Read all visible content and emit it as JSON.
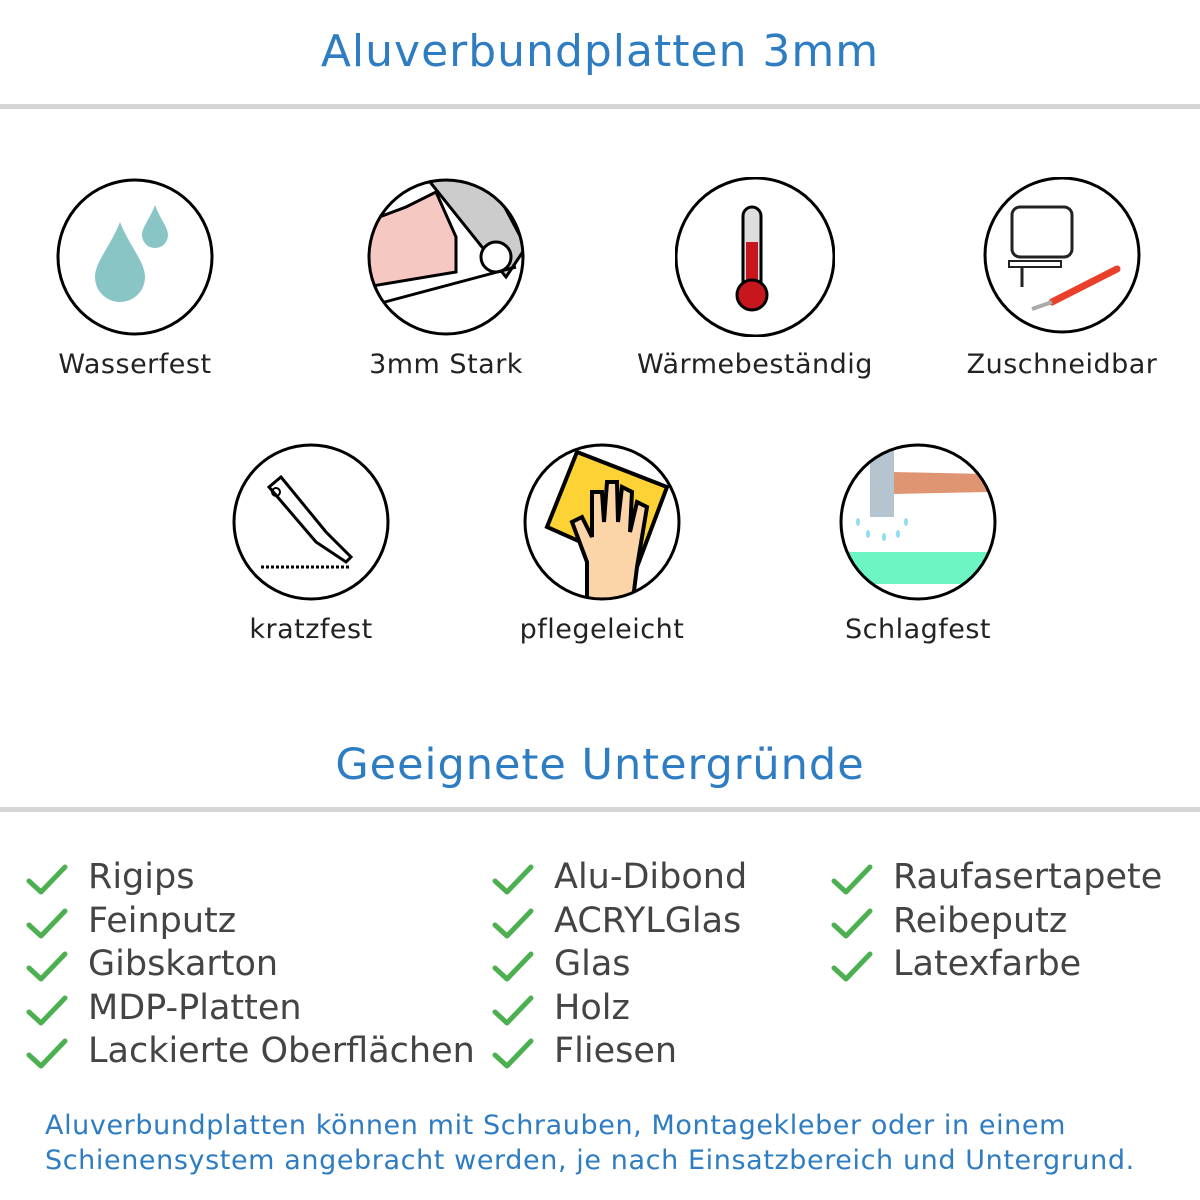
{
  "header": {
    "title": "Aluverbundplatten 3mm"
  },
  "features": [
    {
      "label": "Wasserfest",
      "icon": "water-drops-icon"
    },
    {
      "label": "3mm Stark",
      "icon": "strong-arm-icon"
    },
    {
      "label": "Wärmebeständig",
      "icon": "thermometer-icon"
    },
    {
      "label": "Zuschneidbar",
      "icon": "jigsaw-knife-icon"
    },
    {
      "label": "kratzfest",
      "icon": "cutter-knife-icon"
    },
    {
      "label": "pflegeleicht",
      "icon": "hand-cloth-icon"
    },
    {
      "label": "Schlagfest",
      "icon": "hammer-icon"
    }
  ],
  "surfaces": {
    "title": "Geeignete Untergründe",
    "columns": [
      [
        "Rigips",
        "Feinputz",
        "Gibskarton",
        "MDP-Platten",
        "Lackierte Oberflächen"
      ],
      [
        "Alu-Dibond",
        "ACRYLGlas",
        "Glas",
        "Holz",
        "Fliesen"
      ],
      [
        "Raufasertapete",
        "Reibeputz",
        "Latexfarbe"
      ]
    ],
    "check_color": "#4caf50"
  },
  "footer": {
    "line1": "Aluverbundplatten können mit Schrauben, Montagekleber oder in einem",
    "line2": "Schienensystem angebracht werden, je nach Einsatzbereich und Untergrund."
  },
  "colors": {
    "accent": "#2e7cc2",
    "rule": "#d6d6d6"
  }
}
